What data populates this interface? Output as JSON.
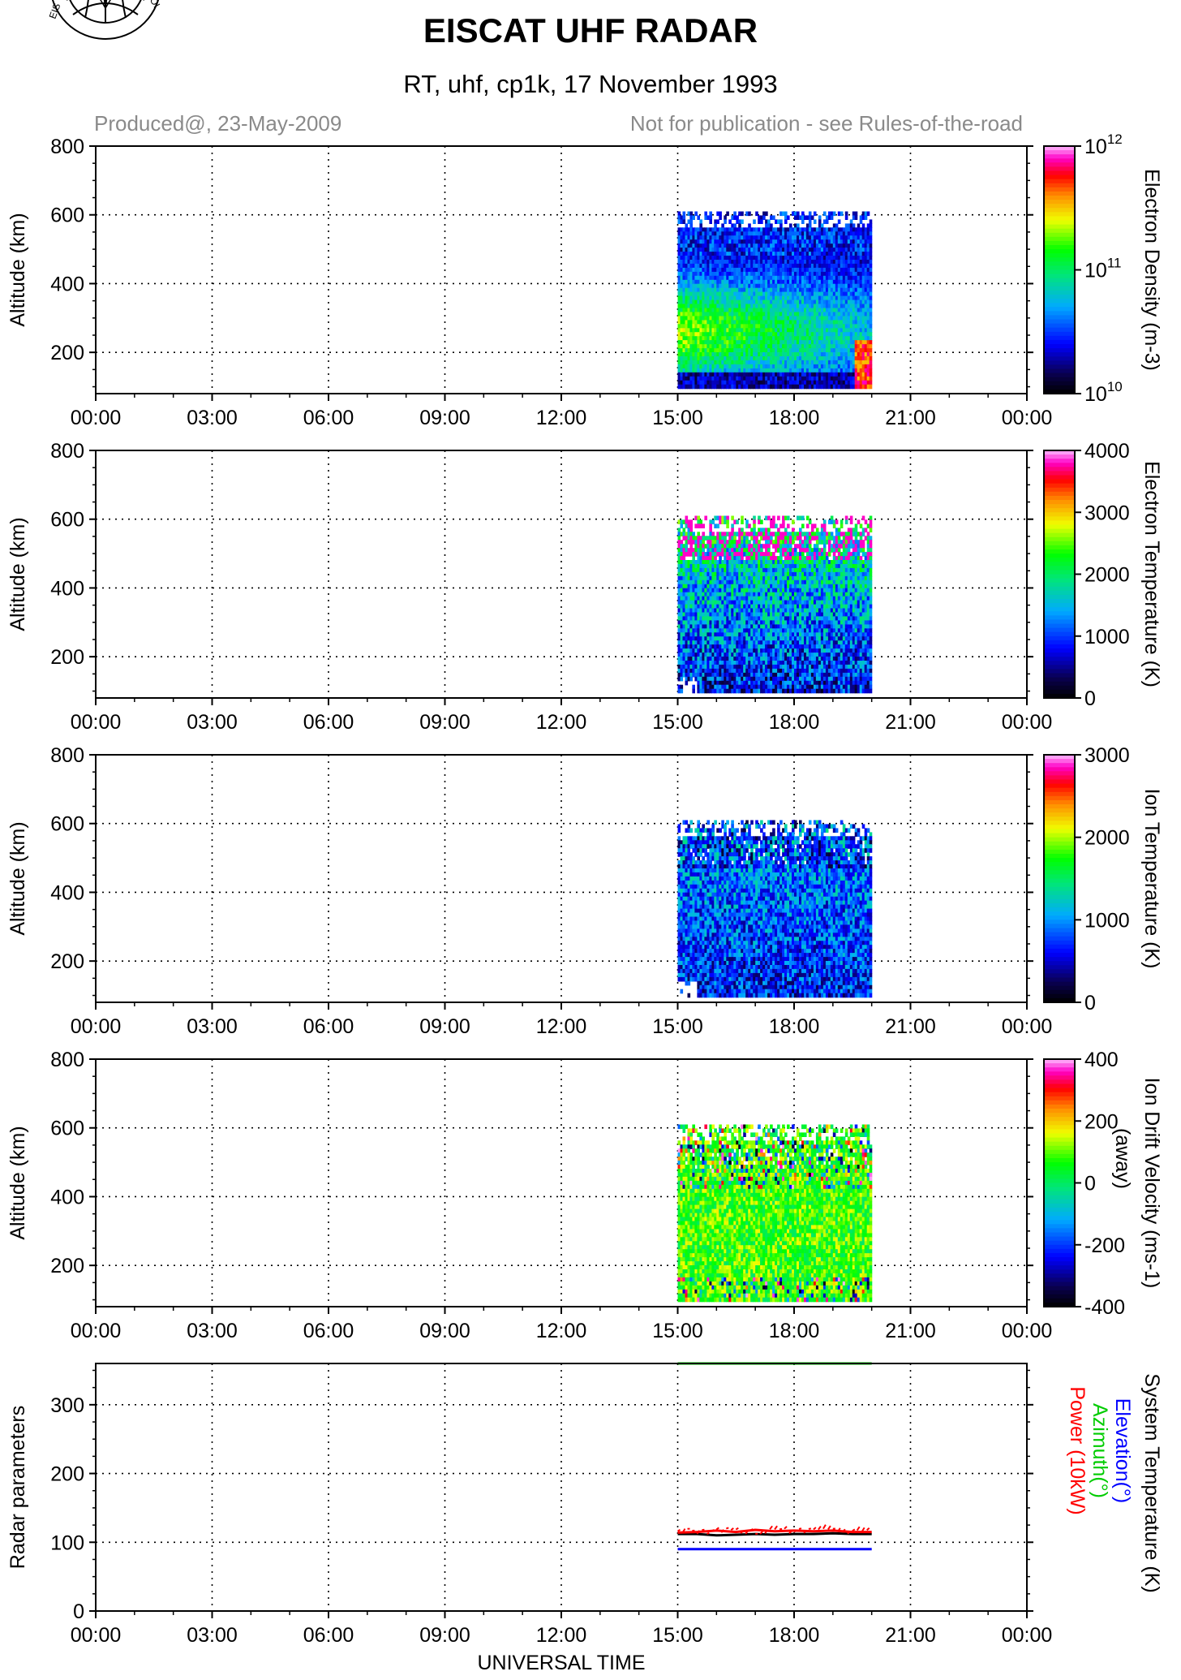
{
  "header": {
    "title": "EISCAT UHF RADAR",
    "subtitle": "RT, uhf, cp1k, 17 November 1993",
    "produced": "Produced@, 23-May-2009",
    "notice": "Not for publication - see Rules-of-the-road",
    "logo_text": "EISCAT"
  },
  "chart_data": [
    {
      "type": "heatmap",
      "ylabel": "Altitude (km)",
      "yticks": [
        200,
        400,
        600,
        800
      ],
      "ylim": [
        80,
        800
      ],
      "xticks": [
        "00:00",
        "03:00",
        "06:00",
        "09:00",
        "12:00",
        "15:00",
        "18:00",
        "21:00",
        "00:00"
      ],
      "xlim_hours": [
        0,
        24
      ],
      "data_window": {
        "start": "15:00",
        "end": "20:00",
        "max_altitude_km": 610,
        "min_altitude_km": 95
      },
      "colorbar": {
        "label": "Electron Density (m-3)",
        "scale": "log",
        "ticks": [
          "10^10",
          "10^11",
          "10^12"
        ],
        "range": [
          10000000000.0,
          1000000000000.0
        ]
      },
      "grid": true
    },
    {
      "type": "heatmap",
      "ylabel": "Altitude (km)",
      "yticks": [
        200,
        400,
        600,
        800
      ],
      "ylim": [
        80,
        800
      ],
      "xticks": [
        "00:00",
        "03:00",
        "06:00",
        "09:00",
        "12:00",
        "15:00",
        "18:00",
        "21:00",
        "00:00"
      ],
      "xlim_hours": [
        0,
        24
      ],
      "data_window": {
        "start": "15:00",
        "end": "20:00",
        "max_altitude_km": 610,
        "min_altitude_km": 95
      },
      "colorbar": {
        "label": "Electron Temperature (K)",
        "scale": "linear",
        "ticks": [
          "0",
          "1000",
          "2000",
          "3000",
          "4000"
        ],
        "range": [
          0,
          4000
        ]
      },
      "grid": true
    },
    {
      "type": "heatmap",
      "ylabel": "Altitude (km)",
      "yticks": [
        200,
        400,
        600,
        800
      ],
      "ylim": [
        80,
        800
      ],
      "xticks": [
        "00:00",
        "03:00",
        "06:00",
        "09:00",
        "12:00",
        "15:00",
        "18:00",
        "21:00",
        "00:00"
      ],
      "xlim_hours": [
        0,
        24
      ],
      "data_window": {
        "start": "15:00",
        "end": "20:00",
        "max_altitude_km": 610,
        "min_altitude_km": 95
      },
      "colorbar": {
        "label": "Ion Temperature (K)",
        "scale": "linear",
        "ticks": [
          "0",
          "1000",
          "2000",
          "3000"
        ],
        "range": [
          0,
          3000
        ]
      },
      "grid": true
    },
    {
      "type": "heatmap",
      "ylabel": "Altitude (km)",
      "yticks": [
        200,
        400,
        600,
        800
      ],
      "ylim": [
        80,
        800
      ],
      "xticks": [
        "00:00",
        "03:00",
        "06:00",
        "09:00",
        "12:00",
        "15:00",
        "18:00",
        "21:00",
        "00:00"
      ],
      "xlim_hours": [
        0,
        24
      ],
      "data_window": {
        "start": "15:00",
        "end": "20:00",
        "max_altitude_km": 610,
        "min_altitude_km": 95
      },
      "colorbar": {
        "label": "Ion Drift Velocity (ms-1)",
        "label2": "(away)",
        "scale": "linear",
        "ticks": [
          "-400",
          "-200",
          "0",
          "200",
          "400"
        ],
        "range": [
          -400,
          400
        ]
      },
      "grid": true
    },
    {
      "type": "line",
      "ylabel": "Radar parameters",
      "xlabel": "UNIVERSAL TIME",
      "yticks": [
        0,
        100,
        200,
        300
      ],
      "ylim": [
        0,
        360
      ],
      "xticks": [
        "00:00",
        "03:00",
        "06:00",
        "09:00",
        "12:00",
        "15:00",
        "18:00",
        "21:00",
        "00:00"
      ],
      "xlim_hours": [
        0,
        24
      ],
      "series": [
        {
          "name": "System Temperature (K)",
          "color": "#000000",
          "x_hours": [
            15.0,
            15.5,
            16.0,
            16.5,
            17.0,
            17.5,
            18.0,
            18.5,
            19.0,
            19.5,
            20.0
          ],
          "values": [
            112,
            112,
            110,
            111,
            112,
            111,
            112,
            112,
            113,
            112,
            112
          ]
        },
        {
          "name": "Elevation(°)",
          "color": "#0000ff",
          "x_hours": [
            15.0,
            20.0
          ],
          "values": [
            90,
            90
          ]
        },
        {
          "name": "Azimuth(°)",
          "color": "#00cc00",
          "x_hours": [
            15.0,
            20.0
          ],
          "values": [
            360,
            360
          ]
        },
        {
          "name": "Power (10kW)",
          "color": "#ff0000",
          "x_hours": [
            15.0,
            15.5,
            16.0,
            16.5,
            17.0,
            17.5,
            18.0,
            18.5,
            19.0,
            19.5,
            20.0
          ],
          "values": [
            114,
            115,
            117,
            115,
            118,
            116,
            117,
            116,
            117,
            115,
            115
          ]
        }
      ],
      "legend_lines": [
        "System Temperature (K)",
        "Elevation(°)",
        "Azimuth(°)",
        "Power (10kW)"
      ],
      "grid": true
    }
  ]
}
